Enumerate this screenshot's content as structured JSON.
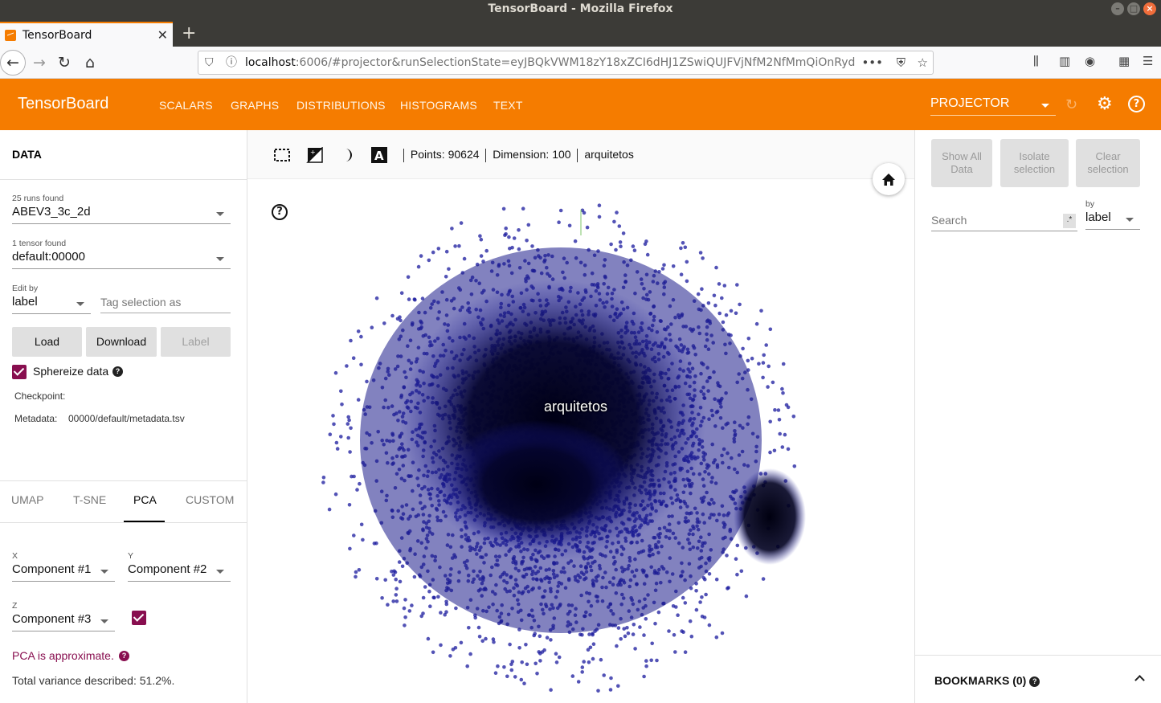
{
  "window": {
    "title": "TensorBoard - Mozilla Firefox"
  },
  "browser": {
    "tab_title": "TensorBoard",
    "url_host": "localhost",
    "url_rest": ":6006/#projector&runSelectionState=eyJBQkVWM18zY18xZCI6dHJ1ZSwiQUJFVjNfM2NfMmQiOnRyd"
  },
  "header": {
    "title": "TensorBoard",
    "nav": [
      "SCALARS",
      "GRAPHS",
      "DISTRIBUTIONS",
      "HISTOGRAMS",
      "TEXT"
    ],
    "plugin": "PROJECTOR"
  },
  "data_panel": {
    "title": "DATA",
    "runs_label": "25 runs found",
    "run_value": "ABEV3_3c_2d",
    "tensor_label": "1 tensor found",
    "tensor_value": "default:00000",
    "edit_by_label": "Edit by",
    "edit_by_value": "label",
    "tag_placeholder": "Tag selection as",
    "load": "Load",
    "download": "Download",
    "label_btn": "Label",
    "spherize": "Sphereize data",
    "checkpoint_label": "Checkpoint:",
    "metadata_label": "Metadata:",
    "metadata_value": "00000/default/metadata.tsv"
  },
  "projection": {
    "tabs": [
      "UMAP",
      "T-SNE",
      "PCA",
      "CUSTOM"
    ],
    "x_label": "X",
    "x_value": "Component #1",
    "y_label": "Y",
    "y_value": "Component #2",
    "z_label": "Z",
    "z_value": "Component #3",
    "pca_note": "PCA is approximate.",
    "variance": "Total variance described: 51.2%."
  },
  "toolbar": {
    "points": "Points: 90624",
    "dimension": "Dimension: 100",
    "selected": "arquitetos"
  },
  "canvas": {
    "point_label": "arquitetos",
    "point_color": "#1a1a9e"
  },
  "inspector": {
    "show_all": "Show All Data",
    "isolate": "Isolate selection",
    "clear": "Clear selection",
    "search_placeholder": "Search",
    "regex": ".*",
    "by_label": "by",
    "by_value": "label",
    "bookmarks": "BOOKMARKS (0)"
  }
}
